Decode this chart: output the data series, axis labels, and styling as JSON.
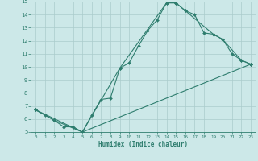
{
  "xlabel": "Humidex (Indice chaleur)",
  "bg_color": "#cce8e8",
  "grid_color": "#aacccc",
  "line_color": "#2e7d6e",
  "xlim": [
    -0.5,
    23.5
  ],
  "ylim": [
    5,
    15
  ],
  "xticks": [
    0,
    1,
    2,
    3,
    4,
    5,
    6,
    7,
    8,
    9,
    10,
    11,
    12,
    13,
    14,
    15,
    16,
    17,
    18,
    19,
    20,
    21,
    22,
    23
  ],
  "yticks": [
    5,
    6,
    7,
    8,
    9,
    10,
    11,
    12,
    13,
    14,
    15
  ],
  "line1_x": [
    0,
    1,
    2,
    3,
    4,
    5,
    6,
    7,
    8,
    9,
    10,
    11,
    12,
    13,
    14,
    15,
    16,
    17,
    18,
    19,
    20,
    21,
    22,
    23
  ],
  "line1_y": [
    6.7,
    6.3,
    5.9,
    5.4,
    5.4,
    5.0,
    6.3,
    7.5,
    7.6,
    9.9,
    10.3,
    11.6,
    12.8,
    13.6,
    14.9,
    14.9,
    14.3,
    14.0,
    12.6,
    12.5,
    12.1,
    11.0,
    10.5,
    10.2
  ],
  "line2_x": [
    0,
    2,
    5,
    9,
    14,
    15,
    16,
    19,
    20,
    22,
    23
  ],
  "line2_y": [
    6.7,
    5.9,
    5.0,
    9.9,
    14.9,
    14.9,
    14.3,
    12.5,
    12.1,
    10.5,
    10.2
  ],
  "line3_x": [
    0,
    5,
    23
  ],
  "line3_y": [
    6.7,
    5.0,
    10.2
  ]
}
